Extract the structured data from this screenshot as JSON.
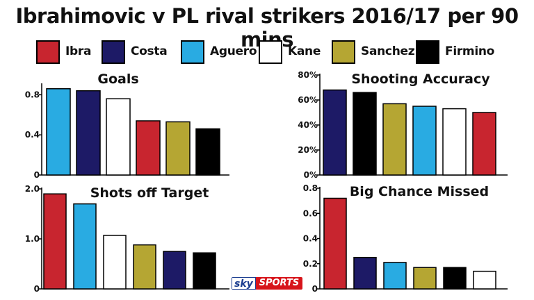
{
  "title": "Ibrahimovic v PL rival strikers 2016/17 per 90 mins",
  "players": [
    {
      "name": "Ibra",
      "color": "#c8252f"
    },
    {
      "name": "Costa",
      "color": "#1d1a66"
    },
    {
      "name": "Aguero",
      "color": "#29abe2"
    },
    {
      "name": "Kane",
      "color": "#ffffff"
    },
    {
      "name": "Sanchez",
      "color": "#b5a633"
    },
    {
      "name": "Firmino",
      "color": "#000000"
    }
  ],
  "logo": {
    "sky": "sky",
    "sports": "SPORTS"
  },
  "chart_data": [
    {
      "type": "bar",
      "title": "Goals",
      "categories": [
        "Aguero",
        "Costa",
        "Kane",
        "Ibra",
        "Sanchez",
        "Firmino"
      ],
      "values": [
        0.86,
        0.84,
        0.76,
        0.54,
        0.53,
        0.46
      ],
      "ylim": [
        0,
        0.9
      ],
      "yticks": [
        {
          "v": 0,
          "label": "0"
        },
        {
          "v": 0.4,
          "label": "0.4"
        },
        {
          "v": 0.8,
          "label": "0.8"
        }
      ]
    },
    {
      "type": "bar",
      "title": "Shooting Accuracy",
      "categories": [
        "Costa",
        "Firmino",
        "Sanchez",
        "Aguero",
        "Kane",
        "Ibra"
      ],
      "values": [
        68,
        66,
        57,
        55,
        53,
        50
      ],
      "ylim": [
        0,
        80
      ],
      "yticks": [
        {
          "v": 0,
          "label": "0%"
        },
        {
          "v": 20,
          "label": "20%"
        },
        {
          "v": 40,
          "label": "40%"
        },
        {
          "v": 60,
          "label": "60%"
        },
        {
          "v": 80,
          "label": "80%"
        }
      ]
    },
    {
      "type": "bar",
      "title": "Shots off Target",
      "categories": [
        "Ibra",
        "Aguero",
        "Kane",
        "Sanchez",
        "Costa",
        "Firmino"
      ],
      "values": [
        1.9,
        1.7,
        1.07,
        0.88,
        0.75,
        0.72
      ],
      "ylim": [
        0,
        2.0
      ],
      "yticks": [
        {
          "v": 0,
          "label": "0"
        },
        {
          "v": 1.0,
          "label": "1.0"
        },
        {
          "v": 2.0,
          "label": "2.0"
        }
      ]
    },
    {
      "type": "bar",
      "title": "Big Chance Missed",
      "categories": [
        "Ibra",
        "Costa",
        "Aguero",
        "Sanchez",
        "Firmino",
        "Kane"
      ],
      "values": [
        0.72,
        0.25,
        0.21,
        0.17,
        0.17,
        0.14
      ],
      "ylim": [
        0,
        0.8
      ],
      "yticks": [
        {
          "v": 0,
          "label": "0"
        },
        {
          "v": 0.2,
          "label": "0.2"
        },
        {
          "v": 0.4,
          "label": "0.4"
        },
        {
          "v": 0.6,
          "label": "0.6"
        },
        {
          "v": 0.8,
          "label": "0.8"
        }
      ]
    }
  ]
}
